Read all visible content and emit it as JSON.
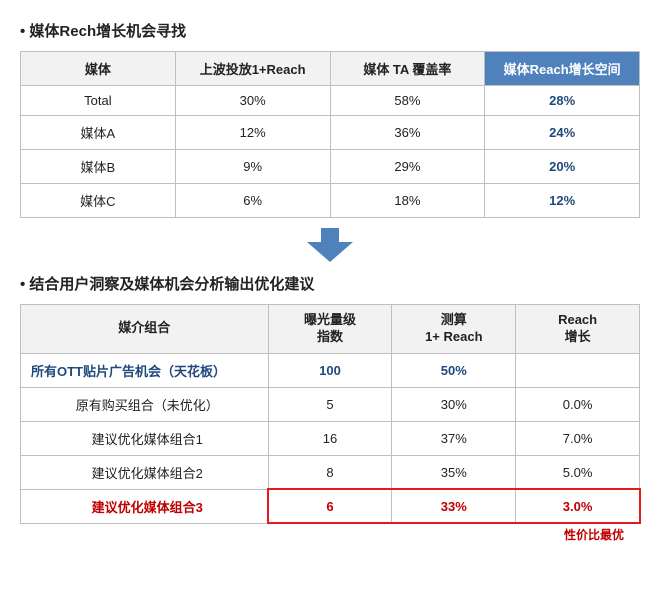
{
  "section1": {
    "title": "媒体Rech增长机会寻找",
    "columns": [
      "媒体",
      "上波投放1+Reach",
      "媒体 TA 覆盖率",
      "媒体Reach增长空间"
    ],
    "rows": [
      [
        "Total",
        "30%",
        "58%",
        "28%"
      ],
      [
        "媒体A",
        "12%",
        "36%",
        "24%"
      ],
      [
        "媒体B",
        "9%",
        "29%",
        "20%"
      ],
      [
        "媒体C",
        "6%",
        "18%",
        "12%"
      ]
    ],
    "header_bg": "#f2f2f2",
    "highlight_header_bg": "#4f81bd",
    "highlight_header_color": "#ffffff",
    "last_col_color": "#1f497d"
  },
  "arrow": {
    "fill": "#4f81bd"
  },
  "section2": {
    "title": "结合用户洞察及媒体机会分析输出优化建议",
    "columns": [
      "媒介组合",
      "曝光量级指数",
      "测算1+ Reach",
      "Reach增长"
    ],
    "col_lines": [
      [
        "媒介组合"
      ],
      [
        "曝光量级",
        "指数"
      ],
      [
        "测算",
        "1+ Reach"
      ],
      [
        "Reach",
        "增长"
      ]
    ],
    "rows": [
      {
        "cells": [
          "所有OTT贴片广告机会（天花板）",
          "100",
          "50%",
          ""
        ],
        "style": "blue"
      },
      {
        "cells": [
          "原有购买组合（未优化）",
          "5",
          "30%",
          "0.0%"
        ],
        "style": "normal"
      },
      {
        "cells": [
          "建议优化媒体组合1",
          "16",
          "37%",
          "7.0%"
        ],
        "style": "normal"
      },
      {
        "cells": [
          "建议优化媒体组合2",
          "8",
          "35%",
          "5.0%"
        ],
        "style": "normal"
      },
      {
        "cells": [
          "建议优化媒体组合3",
          "6",
          "33%",
          "3.0%"
        ],
        "style": "red"
      }
    ],
    "footnote": "性价比最优",
    "red_box_color": "#e31b1b",
    "blue_color": "#1f497d",
    "red_color": "#c00000"
  }
}
